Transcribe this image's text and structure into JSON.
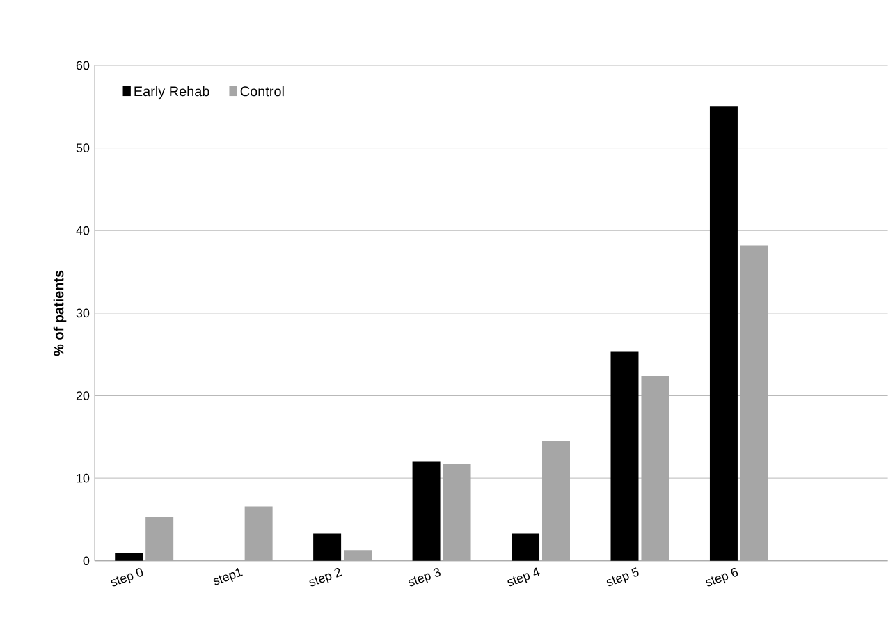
{
  "chart_data": {
    "type": "bar",
    "ylabel": "% of patients",
    "categories": [
      "step 0",
      "step1",
      "step 2",
      "step 3",
      "step 4",
      "step 5",
      "step 6",
      null
    ],
    "series": [
      {
        "name": "Early Rehab",
        "color": "#000000",
        "values": [
          1.0,
          0,
          3.3,
          12.0,
          3.3,
          25.3,
          55.0,
          null
        ]
      },
      {
        "name": "Control",
        "color": "#a6a6a6",
        "values": [
          5.3,
          6.6,
          1.3,
          11.7,
          14.5,
          22.4,
          38.2,
          null
        ]
      }
    ],
    "ylim": [
      0,
      60
    ],
    "yticks": [
      0,
      10,
      20,
      30,
      40,
      50,
      60
    ],
    "grid": "y",
    "legend": "top left"
  }
}
